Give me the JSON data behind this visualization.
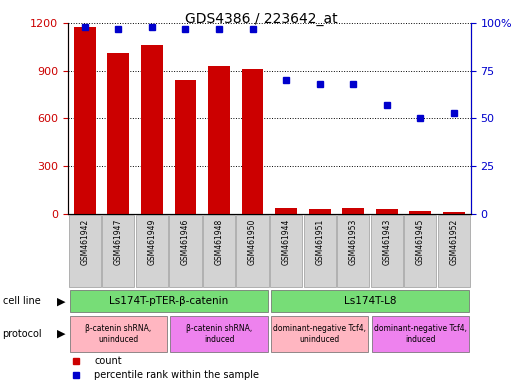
{
  "title": "GDS4386 / 223642_at",
  "samples": [
    "GSM461942",
    "GSM461947",
    "GSM461949",
    "GSM461946",
    "GSM461948",
    "GSM461950",
    "GSM461944",
    "GSM461951",
    "GSM461953",
    "GSM461943",
    "GSM461945",
    "GSM461952"
  ],
  "counts": [
    1175,
    1010,
    1060,
    840,
    930,
    910,
    40,
    30,
    40,
    30,
    20,
    10
  ],
  "percentile": [
    98,
    97,
    98,
    97,
    97,
    97,
    70,
    68,
    68,
    57,
    50,
    53
  ],
  "bar_color": "#cc0000",
  "dot_color": "#0000cc",
  "ylim_left": [
    0,
    1200
  ],
  "ylim_right": [
    0,
    100
  ],
  "yticks_left": [
    0,
    300,
    600,
    900,
    1200
  ],
  "yticks_right": [
    0,
    25,
    50,
    75,
    100
  ],
  "ytick_labels_right": [
    "0",
    "25",
    "50",
    "75",
    "100%"
  ],
  "cell_line_groups": [
    {
      "label": "Ls174T-pTER-β-catenin",
      "start": 0,
      "end": 6,
      "color": "#77dd77"
    },
    {
      "label": "Ls174T-L8",
      "start": 6,
      "end": 12,
      "color": "#77dd77"
    }
  ],
  "protocol_groups": [
    {
      "label": "β-catenin shRNA,\nuninduced",
      "start": 0,
      "end": 3,
      "color": "#ffb6c1"
    },
    {
      "label": "β-catenin shRNA,\ninduced",
      "start": 3,
      "end": 6,
      "color": "#ee82ee"
    },
    {
      "label": "dominant-negative Tcf4,\nuninduced",
      "start": 6,
      "end": 9,
      "color": "#ffb6c1"
    },
    {
      "label": "dominant-negative Tcf4,\ninduced",
      "start": 9,
      "end": 12,
      "color": "#ee82ee"
    }
  ],
  "legend_items": [
    {
      "label": "count",
      "color": "#cc0000"
    },
    {
      "label": "percentile rank within the sample",
      "color": "#0000cc"
    }
  ],
  "cell_line_label": "cell line",
  "protocol_label": "protocol",
  "tick_color_left": "#cc0000",
  "tick_color_right": "#0000cc",
  "background_color": "#ffffff",
  "xticklabel_bg": "#d3d3d3"
}
